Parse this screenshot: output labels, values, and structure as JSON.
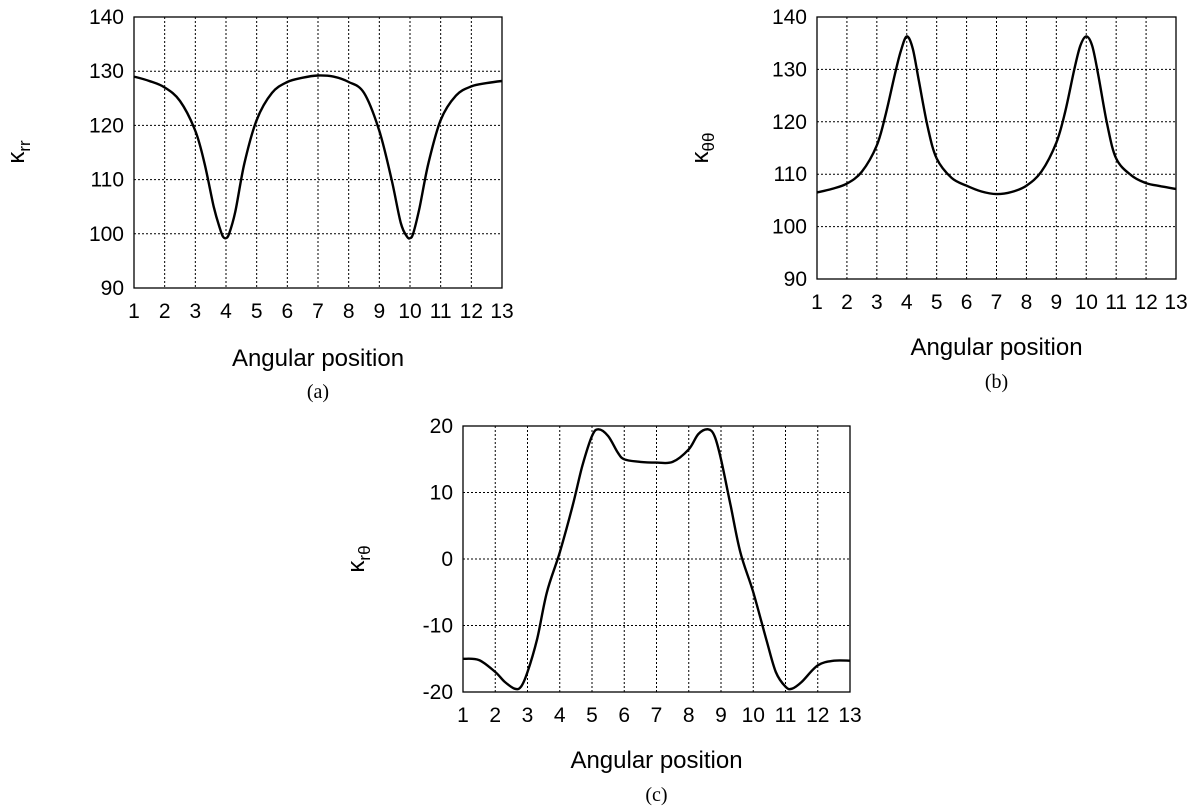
{
  "chart_data": [
    {
      "type": "line",
      "panel_label": "(a)",
      "xlabel": "Angular position",
      "ylabel_main": "κ",
      "ylabel_sub": "rr",
      "xlim": [
        1,
        13
      ],
      "ylim": [
        90,
        140
      ],
      "x_ticks": [
        1,
        2,
        3,
        4,
        5,
        6,
        7,
        8,
        9,
        10,
        11,
        12,
        13
      ],
      "y_ticks": [
        90,
        100,
        110,
        120,
        130,
        140
      ],
      "grid": true,
      "series": [
        {
          "x": [
            1,
            1.5,
            2,
            2.5,
            3,
            3.3,
            3.6,
            3.8,
            3.9,
            4.0,
            4.1,
            4.3,
            4.6,
            5.0,
            5.5,
            6.0,
            6.5,
            7.0,
            7.5,
            8.0,
            8.5,
            9.0,
            9.4,
            9.7,
            9.9,
            10.0,
            10.1,
            10.3,
            10.6,
            11.0,
            11.5,
            12.0,
            12.5,
            13.0
          ],
          "y": [
            129,
            128.2,
            127,
            124.5,
            119,
            113,
            105,
            101,
            99.5,
            99.2,
            100,
            104,
            113,
            121,
            126,
            128,
            128.8,
            129.2,
            129,
            128,
            126,
            119,
            110,
            102,
            99.5,
            99.2,
            100,
            104.5,
            113,
            121,
            125.5,
            127.2,
            127.8,
            128.2
          ]
        }
      ]
    },
    {
      "type": "line",
      "panel_label": "(b)",
      "xlabel": "Angular position",
      "ylabel_main": "κ",
      "ylabel_sub": "θθ",
      "xlim": [
        1,
        13
      ],
      "ylim": [
        90,
        140
      ],
      "x_ticks": [
        1,
        2,
        3,
        4,
        5,
        6,
        7,
        8,
        9,
        10,
        11,
        12,
        13
      ],
      "y_ticks": [
        90,
        100,
        110,
        120,
        130,
        140
      ],
      "grid": true,
      "series": [
        {
          "x": [
            1,
            1.5,
            2,
            2.5,
            3,
            3.3,
            3.6,
            3.8,
            4.0,
            4.2,
            4.4,
            4.7,
            5.0,
            5.5,
            6.0,
            6.5,
            7.0,
            7.5,
            8.0,
            8.5,
            9.0,
            9.3,
            9.6,
            9.8,
            10.0,
            10.2,
            10.4,
            10.7,
            11.0,
            11.5,
            12.0,
            12.5,
            13.0
          ],
          "y": [
            106.5,
            107.2,
            108.2,
            110.5,
            115.5,
            121.5,
            129,
            133.5,
            136.3,
            134,
            128,
            119,
            113,
            109.3,
            107.8,
            106.7,
            106.2,
            106.6,
            107.8,
            110.5,
            116,
            122,
            130,
            134.5,
            136.3,
            134.5,
            129,
            119.5,
            113,
            109.8,
            108.3,
            107.7,
            107.2
          ]
        }
      ]
    },
    {
      "type": "line",
      "panel_label": "(c)",
      "xlabel": "Angular position",
      "ylabel_main": "κ",
      "ylabel_sub": "rθ",
      "xlim": [
        1,
        13
      ],
      "ylim": [
        -20,
        20
      ],
      "x_ticks": [
        1,
        2,
        3,
        4,
        5,
        6,
        7,
        8,
        9,
        10,
        11,
        12,
        13
      ],
      "y_ticks": [
        -20,
        -10,
        0,
        10,
        20
      ],
      "grid": true,
      "series": [
        {
          "x": [
            1,
            1.5,
            2,
            2.3,
            2.6,
            2.8,
            3.0,
            3.3,
            3.6,
            4.0,
            4.4,
            4.7,
            5.0,
            5.2,
            5.5,
            5.8,
            6.0,
            6.5,
            7.0,
            7.5,
            8.0,
            8.3,
            8.6,
            8.8,
            9.0,
            9.3,
            9.6,
            10.0,
            10.4,
            10.7,
            11.0,
            11.2,
            11.5,
            12.0,
            12.5,
            13.0
          ],
          "y": [
            -15,
            -15.2,
            -17,
            -18.5,
            -19.5,
            -19.2,
            -17,
            -12,
            -5,
            1,
            8,
            14,
            18.5,
            19.5,
            18.5,
            16,
            15,
            14.6,
            14.5,
            14.6,
            16.5,
            18.8,
            19.5,
            18.5,
            15,
            8,
            1,
            -5,
            -12,
            -17,
            -19.2,
            -19.5,
            -18.5,
            -16,
            -15.3,
            -15.3
          ]
        }
      ]
    }
  ]
}
